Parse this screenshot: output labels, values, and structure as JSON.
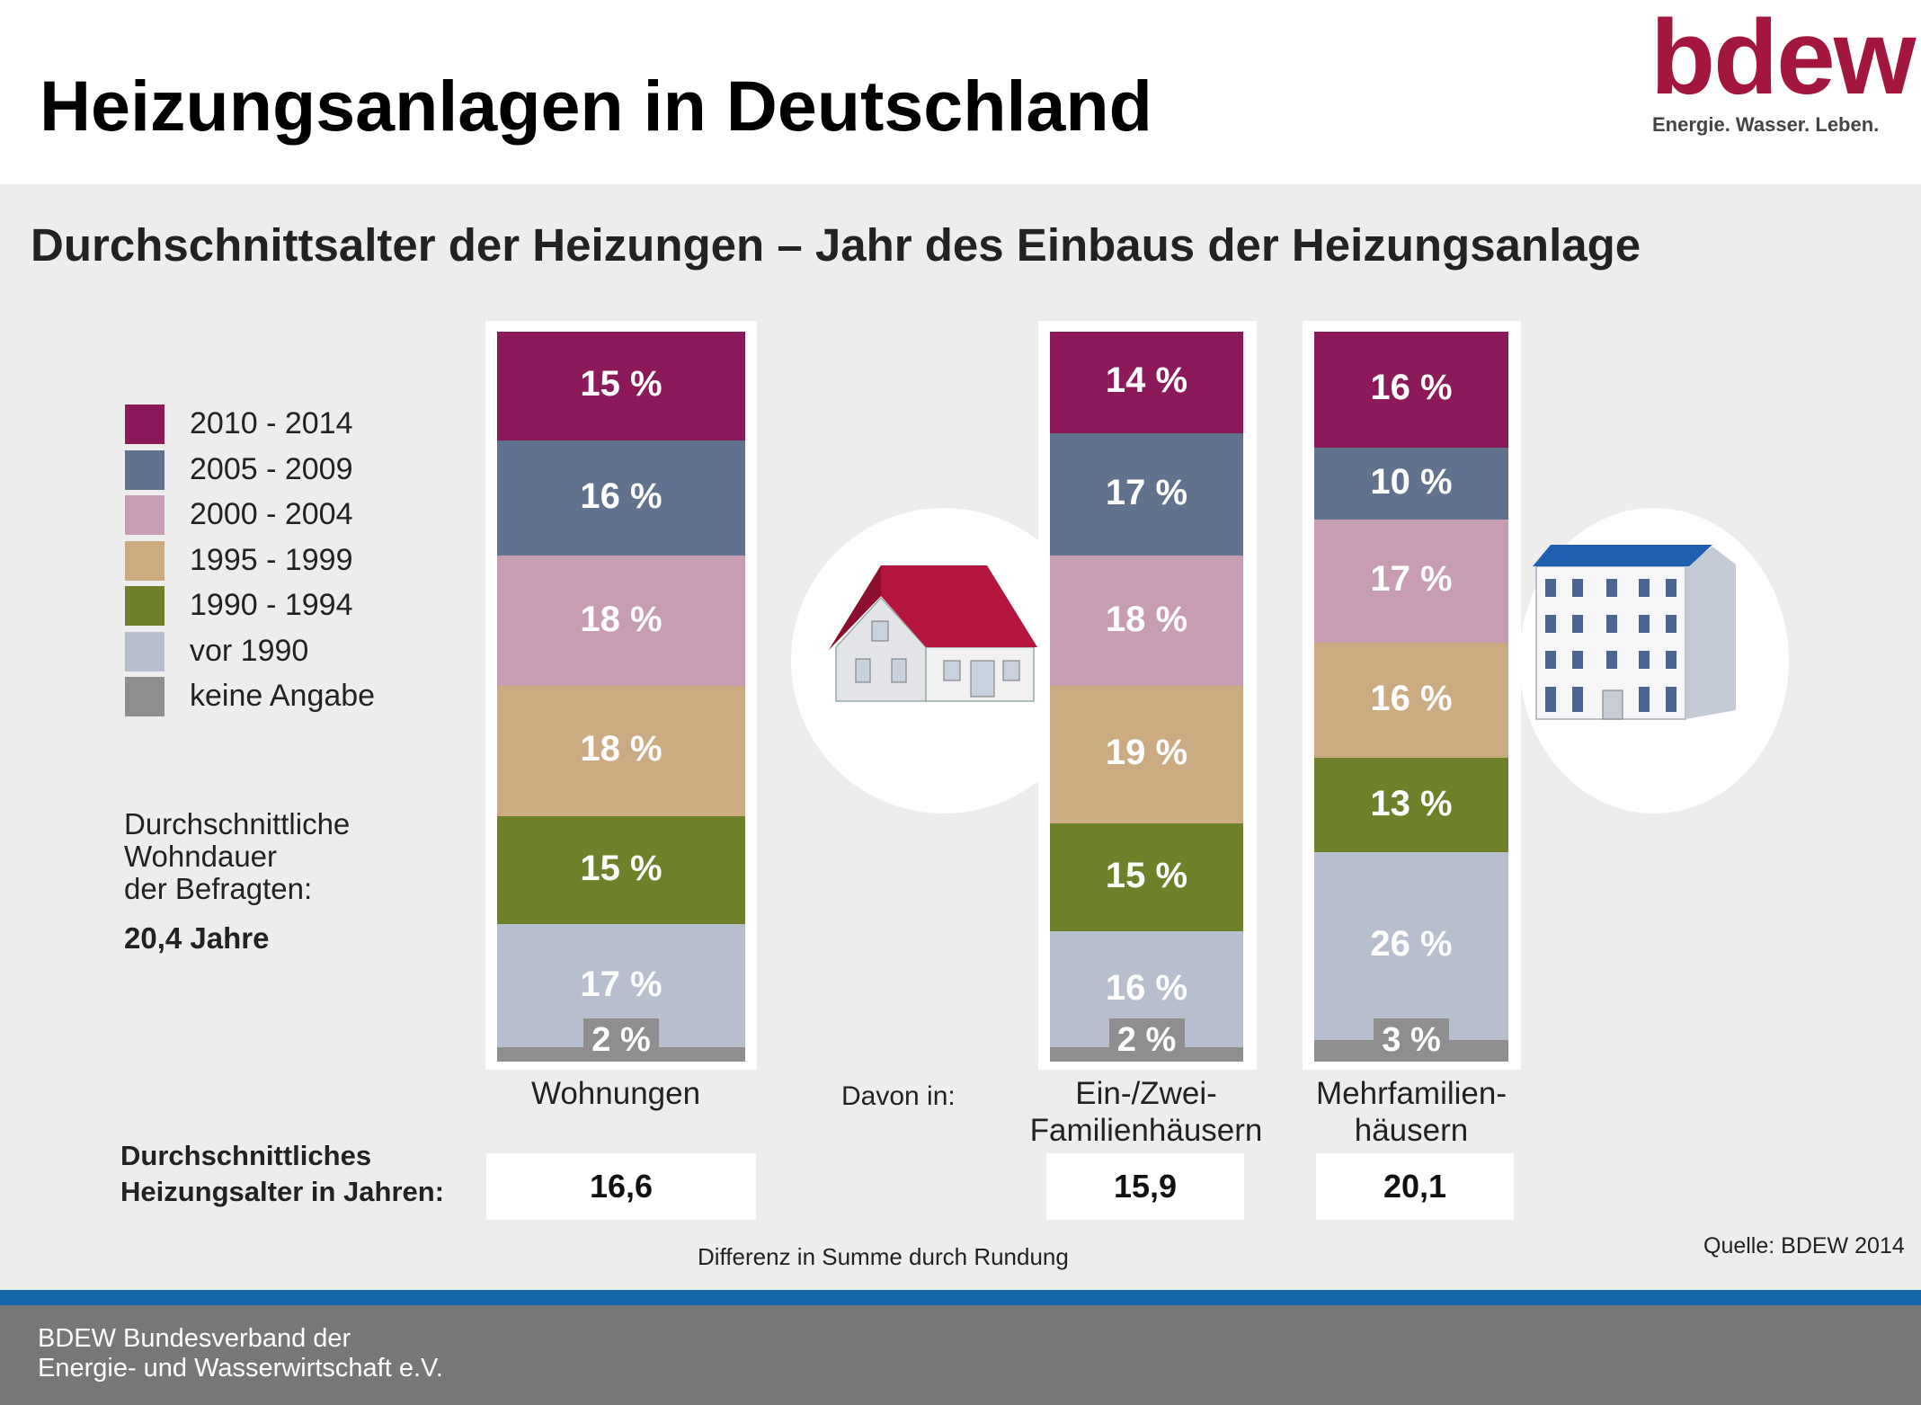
{
  "header": {
    "title": "Heizungsanlagen in Deutschland",
    "logo_word": "bdew",
    "logo_tagline": "Energie. Wasser. Leben."
  },
  "chart_data": {
    "type": "bar",
    "stacked": true,
    "title": "Durchschnittsalter der Heizungen – Jahr des Einbaus der Heizungsanlage",
    "categories": [
      "Wohnungen",
      "Ein-/Zwei-Familienhäusern",
      "Mehrfamilien-häusern"
    ],
    "category_lines": [
      [
        "Wohnungen"
      ],
      [
        "Ein-/Zwei-",
        "Familienhäusern"
      ],
      [
        "Mehrfamilien-",
        "häusern"
      ]
    ],
    "value_unit": "%",
    "series": [
      {
        "name": "2010 - 2014",
        "color": "#8c1a5b",
        "values": [
          15,
          14,
          16
        ]
      },
      {
        "name": "2005 - 2009",
        "color": "#61728f",
        "values": [
          16,
          17,
          10
        ]
      },
      {
        "name": "2000 - 2004",
        "color": "#c89cb2",
        "values": [
          18,
          18,
          17
        ]
      },
      {
        "name": "1995 - 1999",
        "color": "#cdab82",
        "values": [
          18,
          19,
          16
        ]
      },
      {
        "name": "1990 - 1994",
        "color": "#6e812a",
        "values": [
          15,
          15,
          13
        ]
      },
      {
        "name": "vor 1990",
        "color": "#b7bfcf",
        "values": [
          17,
          16,
          26
        ]
      },
      {
        "name": "keine Angabe",
        "color": "#8e8e8e",
        "values": [
          2,
          2,
          3
        ]
      }
    ],
    "legend_position": "left",
    "davon_label": "Davon in:",
    "average_age": {
      "label_lines": [
        "Durchschnittliches",
        "Heizungsalter in Jahren:"
      ],
      "values": [
        "16,6",
        "15,9",
        "20,1"
      ]
    }
  },
  "notes": {
    "wohndauer_lines": [
      "Durchschnittliche",
      "Wohndauer",
      "der Befragten:"
    ],
    "wohndauer_value": "20,4 Jahre",
    "rounding": "Differenz in Summe durch Rundung",
    "source": "Quelle: BDEW 2014"
  },
  "footer": {
    "line1": "BDEW Bundesverband der",
    "line2": "Energie- und Wasserwirtschaft e.V."
  },
  "colors": {
    "brand": "#a3173f",
    "footer_bar": "#777777",
    "footer_line": "#1466ab",
    "panel_bg": "#ededed"
  }
}
